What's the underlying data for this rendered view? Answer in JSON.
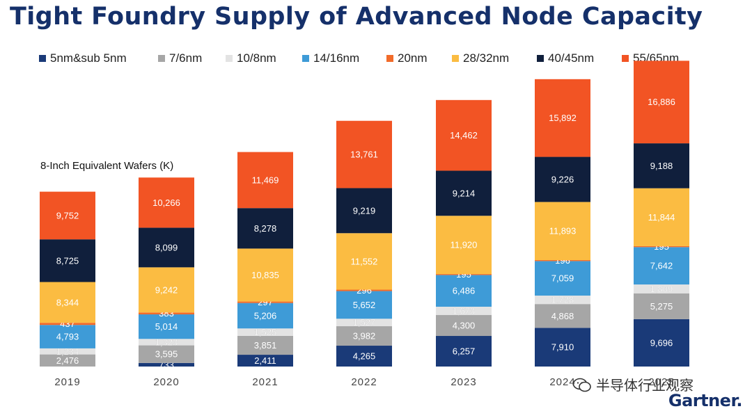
{
  "title": "Tight Foundry Supply of Advanced Node Capacity",
  "unit_label": "8-Inch Equivalent Wafers (K)",
  "watermark": "半导体行业观察",
  "brand": "Gartner.",
  "colors": {
    "title": "#15306a",
    "5nm&sub 5nm": "#1a3a78",
    "7/6nm": "#a6a6a6",
    "10/8nm": "#e3e3e3",
    "14/16nm": "#3e9bd7",
    "20nm": "#f26b2a",
    "28/32nm": "#fbbc42",
    "40/45nm": "#101f3c",
    "55/65nm": "#f25424"
  },
  "chart_data": {
    "type": "bar",
    "stacked": true,
    "ylabel": "8-Inch Equivalent Wafers (K)",
    "legend_position": "top",
    "grid": false,
    "categories": [
      "2019",
      "2020",
      "2021",
      "2022",
      "2023",
      "2024",
      "2025"
    ],
    "series": [
      {
        "name": "5nm&sub 5nm",
        "values": [
          0,
          733,
          2411,
          4265,
          6257,
          7910,
          9696
        ]
      },
      {
        "name": "7/6nm",
        "values": [
          2476,
          3595,
          3851,
          3982,
          4300,
          4868,
          5275
        ]
      },
      {
        "name": "10/8nm",
        "values": [
          1234,
          1323,
          1525,
          1527,
          1673,
          1728,
          1809
        ]
      },
      {
        "name": "14/16nm",
        "values": [
          4793,
          5014,
          5206,
          5652,
          6486,
          7059,
          7642
        ]
      },
      {
        "name": "20nm",
        "values": [
          437,
          383,
          297,
          296,
          195,
          196,
          195
        ]
      },
      {
        "name": "28/32nm",
        "values": [
          8344,
          9242,
          10835,
          11552,
          11920,
          11893,
          11844
        ]
      },
      {
        "name": "40/45nm",
        "values": [
          8725,
          8099,
          8278,
          9219,
          9214,
          9226,
          9188
        ]
      },
      {
        "name": "55/65nm",
        "values": [
          9752,
          10266,
          11469,
          13761,
          14462,
          15892,
          16886
        ]
      }
    ]
  }
}
